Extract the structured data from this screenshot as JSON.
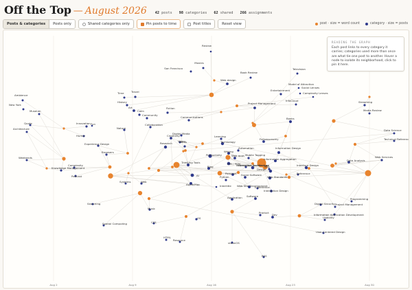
{
  "header": {
    "title": "Off the Top",
    "dash": "—",
    "subtitle": "August 2026",
    "stats": [
      {
        "value": "42",
        "label": "posts"
      },
      {
        "value": "98",
        "label": "categories"
      },
      {
        "value": "62",
        "label": "shared"
      },
      {
        "value": "266",
        "label": "assignments"
      }
    ]
  },
  "toolbar": {
    "view_toggle": [
      "Posts & categories",
      "Posts only"
    ],
    "shared_only": "Shared categories only",
    "pin_posts": "Pin posts to time",
    "post_titles": "Post titles",
    "reset": "Reset view"
  },
  "legend": {
    "post": "post · size = word count",
    "category": "category · size = posts",
    "post_color": "#e8842e",
    "category_color": "#2f3a8c"
  },
  "tooltip": {
    "title": "READING THE GRAPH",
    "body": "Each post links to every category it carries; categories used more than once are what tie one post to another. Hover a node to isolate its neighborhood, click to pin it here."
  },
  "axis": {
    "ticks": [
      "Aug 2",
      "Aug 9",
      "Aug 16",
      "Aug 23",
      "Aug 30"
    ]
  },
  "categories": [
    {
      "label": "Review",
      "r": 1.3
    },
    {
      "label": "Movies",
      "r": 1.5
    },
    {
      "label": "San Francisco",
      "r": 1.5
    },
    {
      "label": "Book Review",
      "r": 1.5
    },
    {
      "label": "Television",
      "r": 1.5
    },
    {
      "label": "Web design",
      "r": 1.9
    },
    {
      "label": "Model of Attraction",
      "r": 1.3
    },
    {
      "label": "Social Lenses",
      "r": 1.3
    },
    {
      "label": "Complexity Lenses",
      "r": 1.3
    },
    {
      "label": "Entertainment",
      "r": 1.6
    },
    {
      "label": "InfoCloud",
      "r": 1.5
    },
    {
      "label": "Ambience",
      "r": 1.5
    },
    {
      "label": "Time",
      "r": 1.5
    },
    {
      "label": "Travel",
      "r": 1.6
    },
    {
      "label": "History",
      "r": 1.6
    },
    {
      "label": "Project Management",
      "r": 1.9
    },
    {
      "label": "Streaming",
      "r": 1.6
    },
    {
      "label": "New York",
      "r": 1.5
    },
    {
      "label": "Museum",
      "r": 1.5
    },
    {
      "label": "Art",
      "r": 1.9
    },
    {
      "label": "Calm",
      "r": 1.6
    },
    {
      "label": "Fiction",
      "r": 1.6
    },
    {
      "label": "Media Review",
      "r": 1.5
    },
    {
      "label": "Community",
      "r": 1.6
    },
    {
      "label": "Communications",
      "r": 1.6
    },
    {
      "label": "Books",
      "r": 2.0
    },
    {
      "label": "Quote",
      "r": 1.5
    },
    {
      "label": "Innovation",
      "r": 1.6
    },
    {
      "label": "Fun",
      "r": 1.3
    },
    {
      "label": "Collaboration",
      "r": 1.6
    },
    {
      "label": "Architecture",
      "r": 1.5
    },
    {
      "label": "Humor",
      "r": 1.5
    },
    {
      "label": "Nature",
      "r": 1.6
    },
    {
      "label": "Digital Media",
      "r": 1.6
    },
    {
      "label": "Video",
      "r": 1.5
    },
    {
      "label": "Creativity",
      "r": 1.9
    },
    {
      "label": "Technology",
      "r": 2.2
    },
    {
      "label": "Data Science",
      "r": 1.5
    },
    {
      "label": "Followsonomy",
      "r": 1.9
    },
    {
      "label": "Focus",
      "r": 1.6
    },
    {
      "label": "Learning",
      "r": 1.6
    },
    {
      "label": "Technical Reference",
      "r": 1.5
    },
    {
      "label": "Experience Design",
      "r": 1.6
    },
    {
      "label": "Research",
      "r": 2.2
    },
    {
      "label": "Information Design",
      "r": 2.0
    },
    {
      "label": "Automation",
      "r": 1.6
    },
    {
      "label": "Weekends",
      "r": 1.5
    },
    {
      "label": "Browsers",
      "r": 1.6
    },
    {
      "label": "Productivity",
      "r": 2.6
    },
    {
      "label": "Writing",
      "r": 2.0
    },
    {
      "label": "Web apps",
      "r": 1.9
    },
    {
      "label": "Mobile Tagging",
      "r": 1.6
    },
    {
      "label": "Web Services",
      "r": 1.6
    },
    {
      "label": "PIM / PKM",
      "r": 2.3
    },
    {
      "label": "Data Analysis",
      "r": 1.9
    },
    {
      "label": "Complexity",
      "r": 1.6
    },
    {
      "label": "Interaction Architecture",
      "r": 1.6
    },
    {
      "label": "Knowledge Management",
      "r": 1.6
    },
    {
      "label": "Information Aggregation",
      "r": 2.0
    },
    {
      "label": "Thinking Tools",
      "r": 2.1
    },
    {
      "label": "Blog",
      "r": 2.0
    },
    {
      "label": "Information Architecture",
      "r": 2.3
    },
    {
      "label": "Interface Design",
      "r": 2.2
    },
    {
      "label": "Mac",
      "r": 1.6
    },
    {
      "label": "Personal",
      "r": 1.9
    },
    {
      "label": "Social Software",
      "r": 1.9
    },
    {
      "label": "Design",
      "r": 2.2
    },
    {
      "label": "Podcast",
      "r": 1.5
    },
    {
      "label": "AI",
      "r": 2.4
    },
    {
      "label": "Python",
      "r": 1.6
    },
    {
      "label": "Web Standards",
      "r": 2.2
    },
    {
      "label": "Reference",
      "r": 1.5
    },
    {
      "label": "Systems",
      "r": 1.5
    },
    {
      "label": "Web",
      "r": 1.6
    },
    {
      "label": "Apple/Mac",
      "r": 2.0
    },
    {
      "label": "Intertitle",
      "r": 1.3
    },
    {
      "label": "Web Site Development",
      "r": 2.0
    },
    {
      "label": "Experience",
      "r": 1.5
    },
    {
      "label": "Interaction Design",
      "r": 1.9
    },
    {
      "label": "Application",
      "r": 1.9
    },
    {
      "label": "Software",
      "r": 1.9
    },
    {
      "label": "Programming",
      "r": 1.5
    },
    {
      "label": "Searching",
      "r": 1.5
    },
    {
      "label": "Digital Security",
      "r": 1.5
    },
    {
      "label": "Project Management",
      "r": 1.5
    },
    {
      "label": "Music",
      "r": 1.6
    },
    {
      "label": "Product",
      "r": 1.6
    },
    {
      "label": "Dev",
      "r": 1.9
    },
    {
      "label": "Information Application Development",
      "r": 1.5
    },
    {
      "label": "Usability",
      "r": 1.5
    },
    {
      "label": "Spatial Computing",
      "r": 1.5
    },
    {
      "label": "OS",
      "r": 1.6
    },
    {
      "label": "CSS",
      "r": 1.5
    },
    {
      "label": "User-Centered Design",
      "r": 1.5
    },
    {
      "label": "HTML",
      "r": 1.5
    },
    {
      "label": "Resource",
      "r": 1.5
    },
    {
      "label": "visionOS",
      "r": 1.5
    },
    {
      "label": "RSS",
      "r": 1.5
    }
  ],
  "posts": [
    {
      "r": 4.5
    },
    {
      "r": 1.6
    },
    {
      "r": 3.3
    },
    {
      "r": 1.6
    },
    {
      "r": 2.0
    },
    {
      "r": 1.6
    },
    {
      "r": 1.9
    },
    {
      "r": 2.6
    },
    {
      "r": 2.1
    },
    {
      "r": 3.0
    },
    {
      "r": 1.6
    },
    {
      "r": 1.9
    },
    {
      "r": 2.2
    },
    {
      "r": 1.6
    },
    {
      "r": 1.9
    },
    {
      "r": 3.6
    },
    {
      "r": 1.6
    },
    {
      "r": 1.9
    },
    {
      "r": 2.1
    },
    {
      "r": 2.6
    },
    {
      "r": 1.6
    },
    {
      "r": 2.4
    },
    {
      "r": 3.7
    },
    {
      "r": 1.6
    },
    {
      "r": 1.9
    },
    {
      "r": 1.9
    },
    {
      "r": 2.1
    },
    {
      "r": 3.1
    },
    {
      "r": 2.4
    },
    {
      "r": 1.9
    },
    {
      "r": 2.0
    },
    {
      "r": 4.4
    },
    {
      "r": 3.6
    },
    {
      "r": 1.6
    },
    {
      "r": 2.2
    },
    {
      "r": 2.9
    },
    {
      "r": 1.6
    },
    {
      "r": 2.6
    },
    {
      "r": 6.5
    },
    {
      "r": 3.3
    },
    {
      "r": 1.9
    },
    {
      "r": 1.6
    }
  ]
}
